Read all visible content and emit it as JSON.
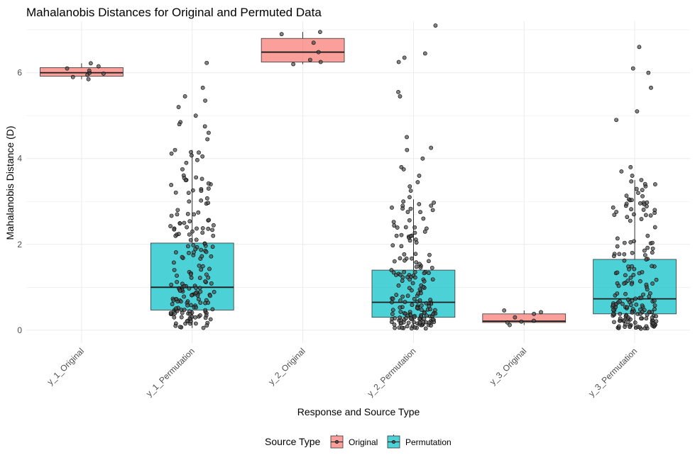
{
  "chart_data": {
    "type": "boxplot",
    "title": "Mahalanobis Distances for Original and Permuted Data",
    "xlabel": "Response and Source Type",
    "ylabel": "Mahalanobis Distance (D)",
    "ylim": [
      -0.3,
      7.2
    ],
    "y_ticks": [
      0,
      2,
      4,
      6
    ],
    "categories": [
      "y_1_Original",
      "y_1_Permutation",
      "y_2_Original",
      "y_2_Permutation",
      "y_3_Original",
      "y_3_Permutation"
    ],
    "legend": {
      "title": "Source Type",
      "position": "bottom",
      "entries": [
        {
          "name": "Original",
          "color": "#F8766D"
        },
        {
          "name": "Permutation",
          "color": "#00BFC4"
        }
      ]
    },
    "boxes": [
      {
        "category": "y_1_Original",
        "source": "Original",
        "q1": 5.92,
        "median": 6.0,
        "q3": 6.12,
        "whisker_low": 5.85,
        "whisker_high": 6.22,
        "points": [
          5.85,
          5.9,
          5.95,
          5.98,
          6.0,
          6.05,
          6.1,
          6.15,
          6.22
        ]
      },
      {
        "category": "y_1_Permutation",
        "source": "Permutation",
        "q1": 0.47,
        "median": 1.0,
        "q3": 2.03,
        "whisker_low": 0.05,
        "whisker_high": 4.2,
        "points": [
          6.23,
          5.65,
          5.45,
          5.35,
          5.2,
          5.0,
          4.85,
          4.8,
          4.75,
          4.6,
          4.45,
          4.2,
          4.15,
          4.05,
          3.9,
          3.75,
          3.5,
          3.4,
          3.3,
          3.2,
          3.0,
          2.95,
          2.8,
          2.7,
          2.5,
          2.4,
          2.3,
          2.2,
          2.1
        ]
      },
      {
        "category": "y_2_Original",
        "source": "Original",
        "q1": 6.25,
        "median": 6.48,
        "q3": 6.8,
        "whisker_low": 6.2,
        "whisker_high": 6.95,
        "points": [
          6.2,
          6.25,
          6.3,
          6.48,
          6.7,
          6.9,
          6.95
        ]
      },
      {
        "category": "y_2_Permutation",
        "source": "Permutation",
        "q1": 0.3,
        "median": 0.65,
        "q3": 1.4,
        "whisker_low": 0.03,
        "whisker_high": 3.05,
        "points": [
          7.1,
          6.45,
          6.35,
          6.25,
          5.55,
          5.45,
          4.5,
          4.25,
          4.2,
          4.0,
          3.8,
          3.75,
          3.6,
          3.45,
          3.35,
          3.25,
          3.1,
          3.0,
          2.9,
          2.8,
          2.6,
          2.4,
          2.2
        ]
      },
      {
        "category": "y_3_Original",
        "source": "Original",
        "q1": 0.18,
        "median": 0.21,
        "q3": 0.38,
        "whisker_low": 0.12,
        "whisker_high": 0.46,
        "points": [
          0.12,
          0.18,
          0.2,
          0.22,
          0.3,
          0.38,
          0.42,
          0.46
        ]
      },
      {
        "category": "y_3_Permutation",
        "source": "Permutation",
        "q1": 0.38,
        "median": 0.73,
        "q3": 1.65,
        "whisker_low": 0.03,
        "whisker_high": 3.5,
        "points": [
          6.6,
          6.1,
          6.0,
          5.65,
          5.1,
          4.9,
          3.8,
          3.7,
          3.6,
          3.5,
          3.4,
          3.2,
          3.05,
          2.9,
          2.7,
          2.55,
          2.4,
          2.2,
          2.05
        ]
      }
    ]
  }
}
